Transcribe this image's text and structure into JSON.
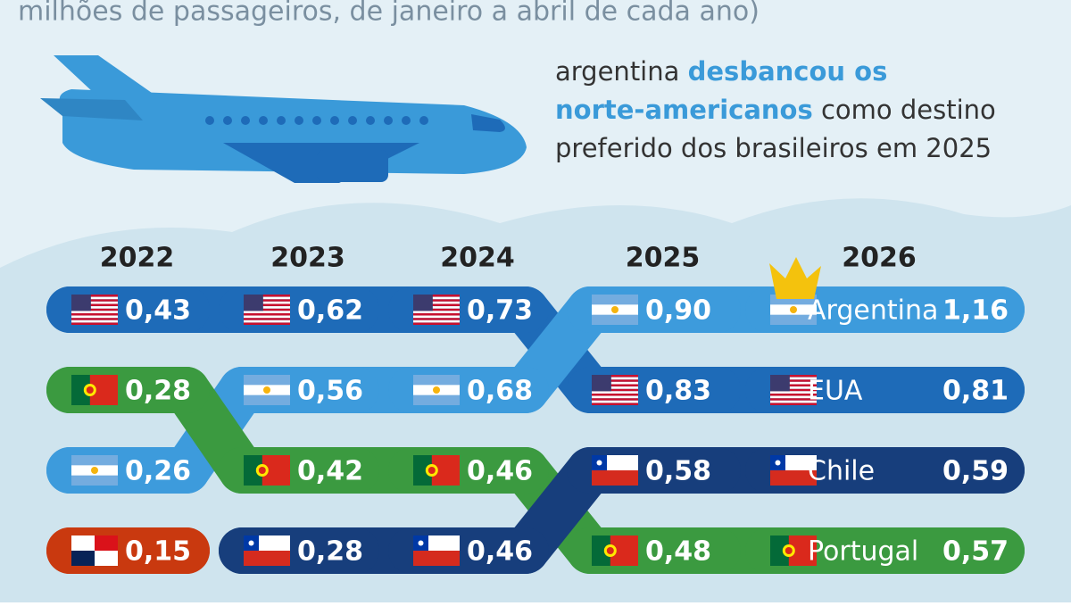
{
  "chart_data": {
    "type": "bump",
    "subtitle": "milhões de passageiros, de janeiro a abril de cada ano)",
    "headline": {
      "before": "argentina ",
      "highlight_1": "desbancou os",
      "highlight_2": "norte-americanos",
      "after_1": " como destino",
      "after_2": "preferido dos brasileiros em 2025"
    },
    "categories": [
      "2022",
      "2023",
      "2024",
      "2025",
      "2026"
    ],
    "series": [
      {
        "name": "EUA",
        "color": "#1e6bb8",
        "values": [
          0.43,
          0.62,
          0.73,
          0.83,
          0.81
        ],
        "value_labels": [
          "0,43",
          "0,62",
          "0,73",
          "0,83",
          "0,81"
        ]
      },
      {
        "name": "Argentina",
        "color": "#3d9bdc",
        "values": [
          0.26,
          0.56,
          0.68,
          0.9,
          1.16
        ],
        "value_labels": [
          "0,26",
          "0,56",
          "0,68",
          "0,90",
          "1,16"
        ]
      },
      {
        "name": "Portugal",
        "color": "#3b9a40",
        "values": [
          0.28,
          0.42,
          0.46,
          0.48,
          0.57
        ],
        "value_labels": [
          "0,28",
          "0,42",
          "0,46",
          "0,48",
          "0,57"
        ]
      },
      {
        "name": "Chile",
        "color": "#173e7c",
        "values": [
          null,
          0.28,
          0.46,
          0.58,
          0.59
        ],
        "value_labels": [
          null,
          "0,28",
          "0,46",
          "0,58",
          "0,59"
        ]
      },
      {
        "color": "#c9390f",
        "values": [
          0.15,
          null,
          null,
          null,
          null
        ],
        "value_labels": [
          "0,15",
          null,
          null,
          null,
          null
        ]
      }
    ]
  }
}
